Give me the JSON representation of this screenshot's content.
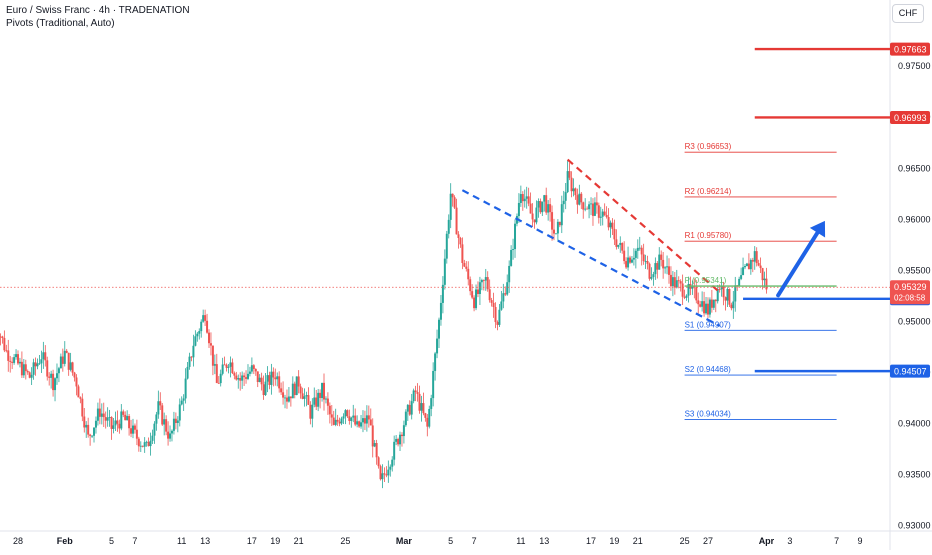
{
  "header": {
    "title": "Euro / Swiss Franc · 4h · TRADENATION",
    "subtitle": "Pivots (Traditional, Auto)",
    "currency": "CHF"
  },
  "colors": {
    "up": "#26a69a",
    "down": "#ef5350",
    "resistance": "#e53935",
    "support": "#1e62e6",
    "pivot": "#66bb6a",
    "bg": "#ffffff",
    "axis_text": "#131722"
  },
  "chart_data": {
    "type": "candlestick",
    "ylim": [
      0.9295,
      0.9785
    ],
    "y_ticks": [
      "0.97500",
      "0.97000",
      "0.96500",
      "0.96000",
      "0.95500",
      "0.95000",
      "0.94500",
      "0.94000",
      "0.93500",
      "0.93000"
    ],
    "y_tick_values": [
      0.975,
      0.97,
      0.965,
      0.96,
      0.955,
      0.95,
      0.945,
      0.94,
      0.935,
      0.93
    ],
    "x_ticks": [
      "28",
      "Feb",
      "5",
      "7",
      "11",
      "13",
      "17",
      "19",
      "21",
      "25",
      "Mar",
      "5",
      "7",
      "11",
      "13",
      "17",
      "19",
      "21",
      "25",
      "27",
      "Apr",
      "3",
      "7",
      "9"
    ],
    "x_tick_dates": [
      "2024-01-28",
      "2024-02-01",
      "2024-02-05",
      "2024-02-07",
      "2024-02-11",
      "2024-02-13",
      "2024-02-17",
      "2024-02-19",
      "2024-02-21",
      "2024-02-25",
      "2024-03-01",
      "2024-03-05",
      "2024-03-07",
      "2024-03-11",
      "2024-03-13",
      "2024-03-17",
      "2024-03-19",
      "2024-03-21",
      "2024-03-25",
      "2024-03-27",
      "2024-04-01",
      "2024-04-03",
      "2024-04-07",
      "2024-04-09"
    ],
    "bold_ticks": [
      "Feb",
      "Mar",
      "Apr"
    ],
    "anchors": [
      [
        "2024-01-26",
        0.9502
      ],
      [
        "2024-01-27",
        0.947
      ],
      [
        "2024-01-29",
        0.9445
      ],
      [
        "2024-01-30",
        0.9466
      ],
      [
        "2024-01-31",
        0.944
      ],
      [
        "2024-02-01",
        0.9468
      ],
      [
        "2024-02-02",
        0.944
      ],
      [
        "2024-02-03",
        0.9385
      ],
      [
        "2024-02-04",
        0.9412
      ],
      [
        "2024-02-05",
        0.9395
      ],
      [
        "2024-02-06",
        0.9405
      ],
      [
        "2024-02-07",
        0.9388
      ],
      [
        "2024-02-08",
        0.9375
      ],
      [
        "2024-02-09",
        0.9415
      ],
      [
        "2024-02-10",
        0.9385
      ],
      [
        "2024-02-11",
        0.942
      ],
      [
        "2024-02-12",
        0.9478
      ],
      [
        "2024-02-13",
        0.9508
      ],
      [
        "2024-02-14",
        0.9438
      ],
      [
        "2024-02-15",
        0.9462
      ],
      [
        "2024-02-16",
        0.9442
      ],
      [
        "2024-02-17",
        0.9452
      ],
      [
        "2024-02-18",
        0.9435
      ],
      [
        "2024-02-19",
        0.9448
      ],
      [
        "2024-02-20",
        0.9425
      ],
      [
        "2024-02-21",
        0.944
      ],
      [
        "2024-02-22",
        0.941
      ],
      [
        "2024-02-23",
        0.9432
      ],
      [
        "2024-02-24",
        0.9395
      ],
      [
        "2024-02-25",
        0.9415
      ],
      [
        "2024-02-26",
        0.9395
      ],
      [
        "2024-02-27",
        0.9405
      ],
      [
        "2024-02-28",
        0.934
      ],
      [
        "2024-02-29",
        0.937
      ],
      [
        "2024-03-01",
        0.94
      ],
      [
        "2024-03-02",
        0.943
      ],
      [
        "2024-03-03",
        0.9395
      ],
      [
        "2024-03-04",
        0.95
      ],
      [
        "2024-03-05",
        0.9625
      ],
      [
        "2024-03-06",
        0.956
      ],
      [
        "2024-03-07",
        0.952
      ],
      [
        "2024-03-08",
        0.954
      ],
      [
        "2024-03-09",
        0.95
      ],
      [
        "2024-03-10",
        0.955
      ],
      [
        "2024-03-11",
        0.963
      ],
      [
        "2024-03-12",
        0.96
      ],
      [
        "2024-03-13",
        0.962
      ],
      [
        "2024-03-14",
        0.958
      ],
      [
        "2024-03-15",
        0.964
      ],
      [
        "2024-03-16",
        0.9618
      ],
      [
        "2024-03-17",
        0.961
      ],
      [
        "2024-03-18",
        0.9605
      ],
      [
        "2024-03-19",
        0.9582
      ],
      [
        "2024-03-20",
        0.956
      ],
      [
        "2024-03-21",
        0.957
      ],
      [
        "2024-03-22",
        0.9548
      ],
      [
        "2024-03-23",
        0.956
      ],
      [
        "2024-03-24",
        0.9538
      ],
      [
        "2024-03-25",
        0.953
      ],
      [
        "2024-03-26",
        0.9525
      ],
      [
        "2024-03-27",
        0.951
      ],
      [
        "2024-03-28",
        0.9535
      ],
      [
        "2024-03-29",
        0.9518
      ],
      [
        "2024-03-30",
        0.9545
      ],
      [
        "2024-03-31",
        0.9565
      ],
      [
        "2024-04-01",
        0.9533
      ]
    ],
    "pivots": [
      {
        "label": "R3 (0.96653)",
        "value": 0.96653,
        "kind": "r"
      },
      {
        "label": "R2 (0.96214)",
        "value": 0.96214,
        "kind": "r"
      },
      {
        "label": "R1 (0.95780)",
        "value": 0.9578,
        "kind": "r"
      },
      {
        "label": "P (0.95341)",
        "value": 0.95341,
        "kind": "p"
      },
      {
        "label": "S1 (0.94907)",
        "value": 0.94907,
        "kind": "s"
      },
      {
        "label": "S2 (0.94468)",
        "value": 0.94468,
        "kind": "s"
      },
      {
        "label": "S3 (0.94034)",
        "value": 0.94034,
        "kind": "s"
      }
    ],
    "pivot_x_range": [
      "2024-03-25",
      "2024-04-07"
    ],
    "levels": [
      {
        "value": 0.97663,
        "label": "0.97663",
        "kind": "resistance",
        "x_start": "2024-03-31"
      },
      {
        "value": 0.96993,
        "label": "0.96993",
        "kind": "resistance",
        "x_start": "2024-03-31"
      },
      {
        "value": 0.95216,
        "label": "0.95216",
        "kind": "support",
        "x_start": "2024-03-30"
      },
      {
        "value": 0.94507,
        "label": "0.94507",
        "kind": "support",
        "x_start": "2024-03-31"
      }
    ],
    "current_price": {
      "value": 0.95329,
      "label": "0.95329",
      "countdown": "02:08:58"
    },
    "channel_upper": [
      [
        "2024-03-15",
        0.9658
      ],
      [
        "2024-03-28",
        0.9528
      ]
    ],
    "channel_lower": [
      [
        "2024-03-06",
        0.9628
      ],
      [
        "2024-03-28",
        0.9495
      ]
    ],
    "arrow": {
      "from": [
        "2024-04-02",
        0.9525
      ],
      "to": [
        "2024-04-06",
        0.9598
      ]
    }
  }
}
